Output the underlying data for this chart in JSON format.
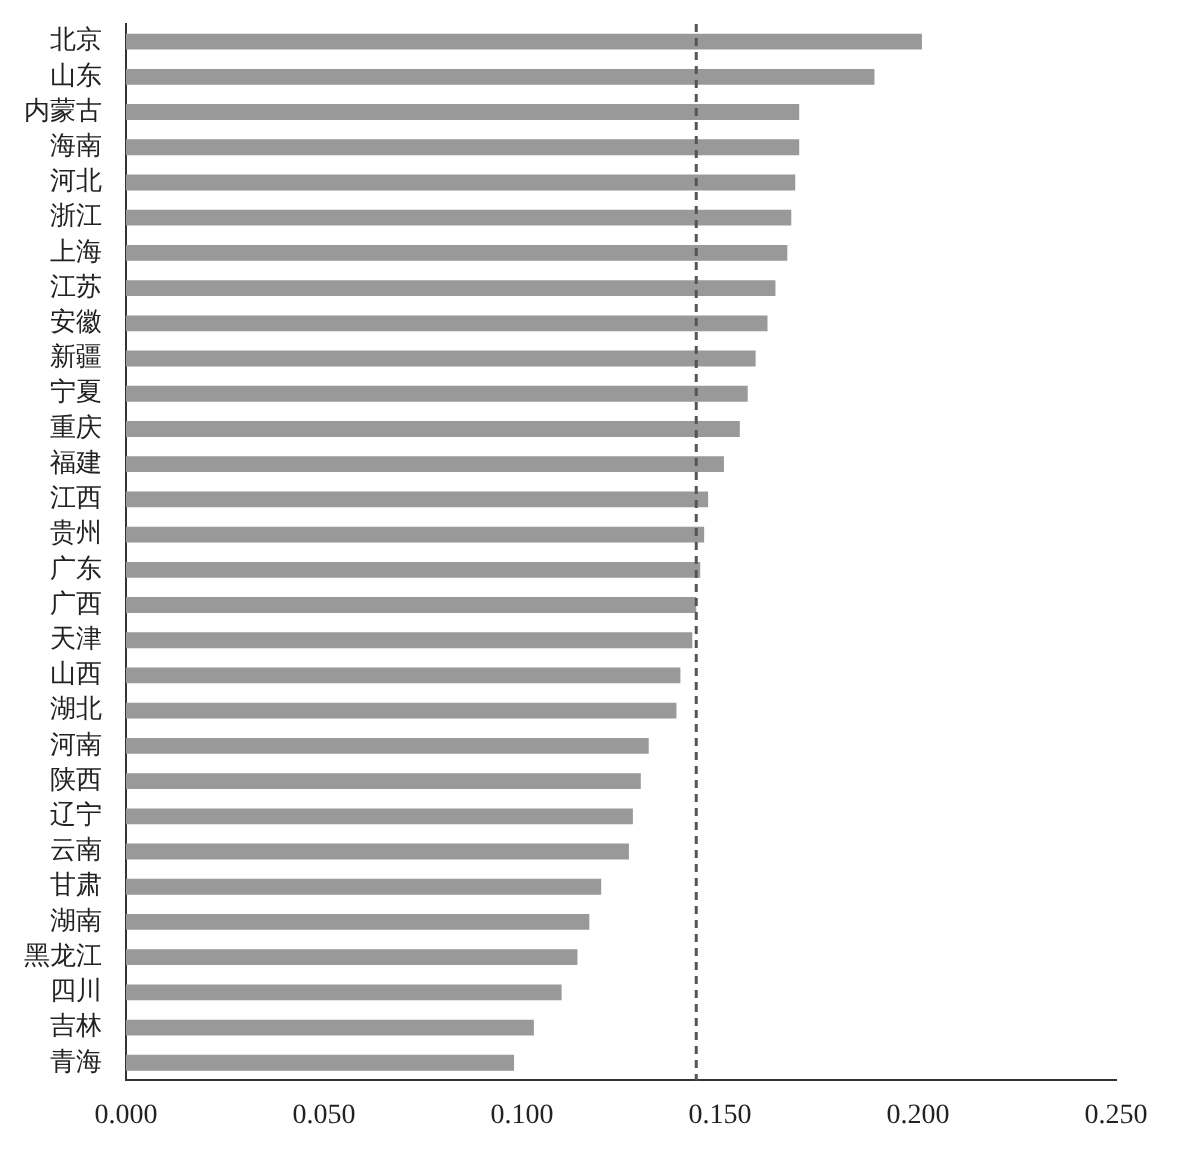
{
  "chart_data": {
    "type": "bar",
    "orientation": "horizontal",
    "categories": [
      "北京",
      "山东",
      "内蒙古",
      "海南",
      "河北",
      "浙江",
      "上海",
      "江苏",
      "安徽",
      "新疆",
      "宁夏",
      "重庆",
      "福建",
      "江西",
      "贵州",
      "广东",
      "广西",
      "天津",
      "山西",
      "湖北",
      "河南",
      "陕西",
      "辽宁",
      "云南",
      "甘肃",
      "湖南",
      "黑龙江",
      "四川",
      "吉林",
      "青海"
    ],
    "values": [
      0.201,
      0.189,
      0.17,
      0.17,
      0.169,
      0.168,
      0.167,
      0.164,
      0.162,
      0.159,
      0.157,
      0.155,
      0.151,
      0.147,
      0.146,
      0.145,
      0.144,
      0.143,
      0.14,
      0.139,
      0.132,
      0.13,
      0.128,
      0.127,
      0.12,
      0.117,
      0.114,
      0.11,
      0.103,
      0.098
    ],
    "color": "#999999",
    "xlim": [
      0,
      0.25
    ],
    "xticks": [
      {
        "value": 0,
        "label": "0.000"
      },
      {
        "value": 0.05,
        "label": "0.050"
      },
      {
        "value": 0.1,
        "label": "0.100"
      },
      {
        "value": 0.15,
        "label": "0.150"
      },
      {
        "value": 0.2,
        "label": "0.200"
      },
      {
        "value": 0.25,
        "label": "0.250"
      }
    ],
    "ref_lines": [
      {
        "axis": "x",
        "value": 0.144,
        "color": "#555555",
        "line_style": "dashed"
      }
    ],
    "grid": false,
    "legend": false
  }
}
